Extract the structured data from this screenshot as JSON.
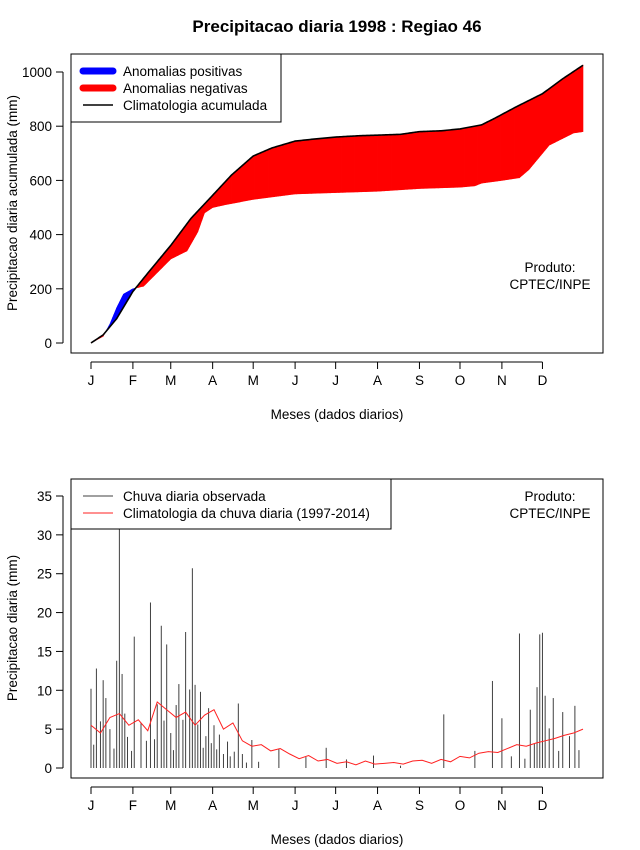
{
  "title": "Precipitacao diaria 1998 : Regiao 46",
  "colors": {
    "positive": "#0000ff",
    "negative": "#ff0000",
    "climatology": "#000000",
    "observed": "#404040",
    "clim_daily": "#ff2020"
  },
  "chart_data": [
    {
      "type": "area",
      "ylabel": "Precipitacao diaria acumulada (mm)",
      "xlabel": "Meses (dados diarios)",
      "ylim": [
        0,
        1000
      ],
      "yticks": [
        0,
        200,
        400,
        600,
        800,
        1000
      ],
      "xticks": [
        {
          "label": "J",
          "day": 1
        },
        {
          "label": "F",
          "day": 32
        },
        {
          "label": "M",
          "day": 60
        },
        {
          "label": "A",
          "day": 91
        },
        {
          "label": "M",
          "day": 121
        },
        {
          "label": "J",
          "day": 152
        },
        {
          "label": "J",
          "day": 182
        },
        {
          "label": "A",
          "day": 213
        },
        {
          "label": "S",
          "day": 244
        },
        {
          "label": "O",
          "day": 274
        },
        {
          "label": "N",
          "day": 305
        },
        {
          "label": "D",
          "day": 335
        }
      ],
      "legend": [
        "Anomalias positivas",
        "Anomalias negativas",
        "Climatologia acumulada"
      ],
      "annotation": [
        "Produto:",
        "CPTEC/INPE"
      ],
      "climatology_accum": {
        "day": [
          1,
          10,
          20,
          32,
          45,
          60,
          75,
          91,
          105,
          121,
          135,
          152,
          165,
          182,
          200,
          213,
          230,
          244,
          260,
          274,
          290,
          300,
          315,
          335,
          350,
          365
        ],
        "value": [
          0,
          30,
          90,
          190,
          270,
          360,
          460,
          545,
          620,
          690,
          720,
          745,
          752,
          760,
          765,
          767,
          770,
          780,
          783,
          790,
          805,
          830,
          870,
          920,
          975,
          1025
        ]
      },
      "observed_accum": {
        "day": [
          1,
          10,
          15,
          20,
          25,
          32,
          40,
          48,
          60,
          72,
          80,
          85,
          91,
          100,
          121,
          152,
          182,
          213,
          244,
          274,
          285,
          290,
          305,
          318,
          325,
          335,
          340,
          352,
          358,
          365
        ],
        "value": [
          0,
          25,
          70,
          130,
          180,
          200,
          210,
          250,
          310,
          340,
          410,
          480,
          500,
          510,
          530,
          550,
          555,
          560,
          570,
          575,
          580,
          590,
          600,
          610,
          640,
          700,
          730,
          760,
          775,
          780
        ]
      }
    },
    {
      "type": "bar",
      "ylabel": "Precipitacao diaria (mm)",
      "xlabel": "Meses (dados diarios)",
      "ylim": [
        0,
        35
      ],
      "yticks": [
        0,
        5,
        10,
        15,
        20,
        25,
        30,
        35
      ],
      "xticks": [
        "J",
        "F",
        "M",
        "A",
        "M",
        "J",
        "J",
        "A",
        "S",
        "O",
        "N",
        "D"
      ],
      "legend": [
        "Chuva diaria observada",
        "Climatologia da chuva diaria (1997-2014)"
      ],
      "annotation": [
        "Produto:",
        "CPTEC/INPE"
      ],
      "observed_daily": {
        "day": [
          1,
          3,
          5,
          8,
          10,
          12,
          15,
          18,
          20,
          22,
          24,
          26,
          28,
          31,
          33,
          38,
          42,
          45,
          48,
          50,
          53,
          55,
          57,
          60,
          62,
          64,
          66,
          69,
          71,
          74,
          76,
          78,
          80,
          82,
          84,
          86,
          88,
          90,
          92,
          94,
          96,
          99,
          102,
          104,
          107,
          110,
          113,
          116,
          120,
          125,
          140,
          160,
          175,
          190,
          210,
          230,
          262,
          285,
          298,
          305,
          312,
          318,
          322,
          326,
          329,
          331,
          333,
          335,
          337,
          340,
          343,
          347,
          350,
          355,
          359,
          362
        ],
        "value": [
          10.2,
          3,
          12.8,
          6,
          11.3,
          9,
          5,
          2.5,
          13.8,
          30.7,
          12.1,
          7,
          4,
          2.2,
          16.9,
          5.8,
          3.5,
          21.3,
          3.7,
          8.2,
          18.3,
          6.1,
          15.9,
          4.5,
          2.3,
          8.1,
          10.8,
          6.2,
          17.5,
          10.1,
          25.7,
          10.7,
          5.6,
          9.8,
          2.6,
          4.1,
          7.7,
          3.2,
          5.5,
          2.4,
          4.3,
          1.8,
          3.4,
          1.5,
          2.1,
          8.3,
          1.8,
          0.7,
          3.6,
          0.8,
          2.5,
          1.4,
          2.6,
          1.1,
          1.6,
          0.3,
          6.9,
          2.2,
          11.2,
          6.4,
          1.5,
          17.3,
          1.2,
          7.5,
          3.1,
          10.4,
          17.2,
          17.4,
          9.3,
          5.1,
          9,
          2.2,
          7.2,
          4.1,
          8,
          2.3
        ]
      },
      "climatology_daily": {
        "day": [
          1,
          8,
          15,
          22,
          29,
          36,
          43,
          50,
          57,
          64,
          71,
          78,
          85,
          92,
          99,
          106,
          113,
          120,
          127,
          134,
          141,
          148,
          155,
          162,
          169,
          176,
          183,
          190,
          197,
          204,
          211,
          218,
          225,
          232,
          239,
          246,
          253,
          260,
          267,
          274,
          281,
          288,
          295,
          302,
          309,
          316,
          323,
          330,
          337,
          344,
          351,
          358,
          365
        ],
        "value": [
          5.5,
          4.5,
          6.5,
          7.0,
          5.5,
          6.2,
          4.8,
          8.5,
          7.5,
          6.5,
          7.2,
          5.5,
          6.8,
          7.5,
          5.0,
          5.8,
          3.5,
          2.8,
          3.0,
          2.2,
          2.5,
          1.8,
          1.2,
          1.6,
          0.9,
          1.1,
          0.6,
          0.8,
          0.4,
          0.9,
          0.5,
          0.6,
          0.7,
          0.5,
          0.9,
          1.0,
          0.6,
          1.1,
          0.8,
          1.5,
          1.3,
          1.9,
          2.1,
          2.0,
          2.5,
          3.0,
          2.8,
          3.2,
          3.5,
          3.8,
          4.2,
          4.5,
          5.0
        ]
      }
    }
  ]
}
